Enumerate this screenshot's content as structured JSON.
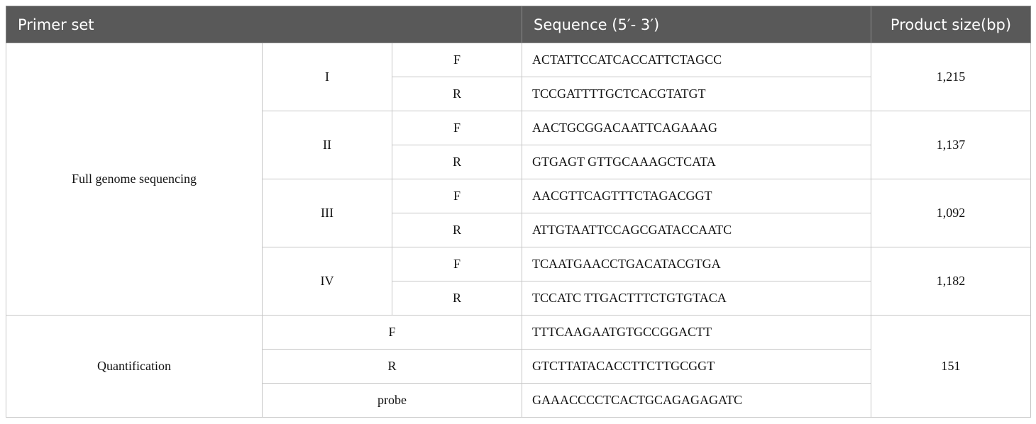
{
  "header": {
    "primer_set": "Primer set",
    "sequence": "Sequence (5′- 3′)",
    "product_size": "Product size(bp)"
  },
  "full_genome": {
    "label": "Full genome sequencing",
    "sets": [
      {
        "name": "I",
        "size": "1,215",
        "primers": [
          {
            "dir": "F",
            "seq": "ACTATTCCATCACCATTCTAGCC"
          },
          {
            "dir": "R",
            "seq": "TCCGATTTTGCTCACGTATGT"
          }
        ]
      },
      {
        "name": "II",
        "size": "1,137",
        "primers": [
          {
            "dir": "F",
            "seq": "AACTGCGGACAATTCAGAAAG"
          },
          {
            "dir": "R",
            "seq": "GTGAGT GTTGCAAAGCTCATA"
          }
        ]
      },
      {
        "name": "III",
        "size": "1,092",
        "primers": [
          {
            "dir": "F",
            "seq": "AACGTTCAGTTTCTAGACGGT"
          },
          {
            "dir": "R",
            "seq": "ATTGTAATTCCAGCGATACCAATC"
          }
        ]
      },
      {
        "name": "IV",
        "size": "1,182",
        "primers": [
          {
            "dir": "F",
            "seq": "TCAATGAACCTGACATACGTGA"
          },
          {
            "dir": "R",
            "seq": "TCCATC TTGACTTTCTGTGTACA"
          }
        ]
      }
    ]
  },
  "quantification": {
    "label": "Quantification",
    "size": "151",
    "primers": [
      {
        "dir": "F",
        "seq": "TTTCAAGAATGTGCCGGACTT"
      },
      {
        "dir": "R",
        "seq": "GTCTTATACACCTTCTTGCGGT"
      },
      {
        "dir": "probe",
        "seq": "GAAACCCCTCACTGCAGAGAGATC"
      }
    ]
  }
}
